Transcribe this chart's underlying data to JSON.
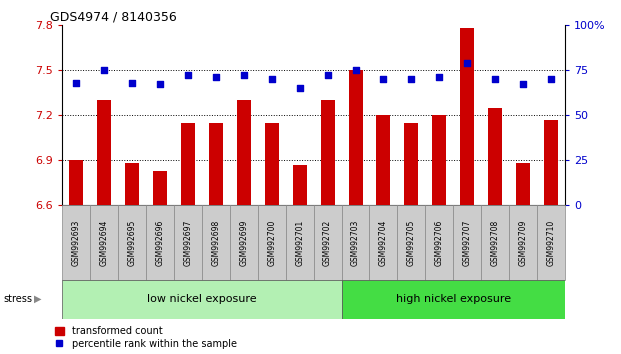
{
  "title": "GDS4974 / 8140356",
  "categories": [
    "GSM992693",
    "GSM992694",
    "GSM992695",
    "GSM992696",
    "GSM992697",
    "GSM992698",
    "GSM992699",
    "GSM992700",
    "GSM992701",
    "GSM992702",
    "GSM992703",
    "GSM992704",
    "GSM992705",
    "GSM992706",
    "GSM992707",
    "GSM992708",
    "GSM992709",
    "GSM992710"
  ],
  "bar_values": [
    6.9,
    7.3,
    6.88,
    6.83,
    7.15,
    7.15,
    7.3,
    7.15,
    6.87,
    7.3,
    7.5,
    7.2,
    7.15,
    7.2,
    7.78,
    7.25,
    6.88,
    7.17
  ],
  "dot_values": [
    68,
    75,
    68,
    67,
    72,
    71,
    72,
    70,
    65,
    72,
    75,
    70,
    70,
    71,
    79,
    70,
    67,
    70
  ],
  "bar_color": "#cc0000",
  "dot_color": "#0000cc",
  "ylim_left": [
    6.6,
    7.8
  ],
  "ylim_right": [
    0,
    100
  ],
  "yticks_left": [
    6.6,
    6.9,
    7.2,
    7.5,
    7.8
  ],
  "yticks_right": [
    0,
    25,
    50,
    75,
    100
  ],
  "ytick_labels_right": [
    "0",
    "25",
    "50",
    "75",
    "100%"
  ],
  "hlines": [
    6.9,
    7.2,
    7.5
  ],
  "group1_label": "low nickel exposure",
  "group2_label": "high nickel exposure",
  "group1_count": 10,
  "stress_label": "stress",
  "legend1": "transformed count",
  "legend2": "percentile rank within the sample",
  "background_color": "#ffffff",
  "plot_bg_color": "#ffffff",
  "group_bg_low": "#b3f0b3",
  "group_bg_high": "#44dd44",
  "tick_area_bg": "#cccccc"
}
